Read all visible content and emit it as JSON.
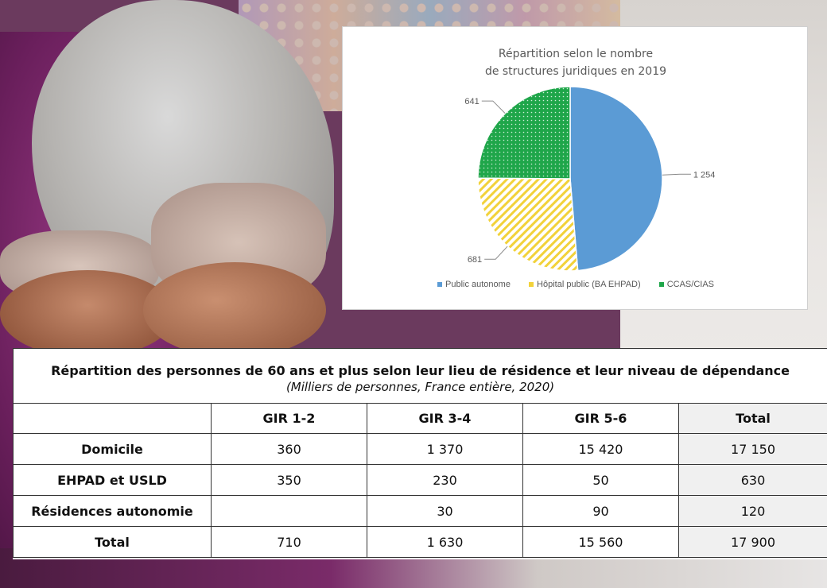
{
  "chart_data": [
    {
      "type": "pie",
      "title": "Répartition selon le nombre de structures juridiques en 2019",
      "title_lines": [
        "Répartition selon le nombre",
        "de structures juridiques en 2019"
      ],
      "categories": [
        "Public autonome",
        "Hôpital public (BA EHPAD)",
        "CCAS/CIAS"
      ],
      "values": [
        1254,
        681,
        641
      ],
      "value_labels": [
        "1 254",
        "681",
        "641"
      ],
      "colors": [
        "#5b9bd5",
        "#f2d23a",
        "#1fa64a"
      ],
      "legend_placement": "bottom"
    },
    {
      "type": "table",
      "title": "Répartition des personnes de 60 ans et plus selon leur lieu de résidence et leur niveau de dépendance",
      "subtitle": "(Milliers de personnes, France entière, 2020)",
      "columns": [
        "",
        "GIR 1-2",
        "GIR 3-4",
        "GIR 5-6",
        "Total"
      ],
      "rows": [
        [
          "Domicile",
          "360",
          "1 370",
          "15 420",
          "17 150"
        ],
        [
          "EHPAD et USLD",
          "350",
          "230",
          "50",
          "630"
        ],
        [
          "Résidences autonomie",
          "",
          "30",
          "90",
          "120"
        ],
        [
          "Total",
          "710",
          "1 630",
          "15 560",
          "17 900"
        ]
      ]
    }
  ]
}
